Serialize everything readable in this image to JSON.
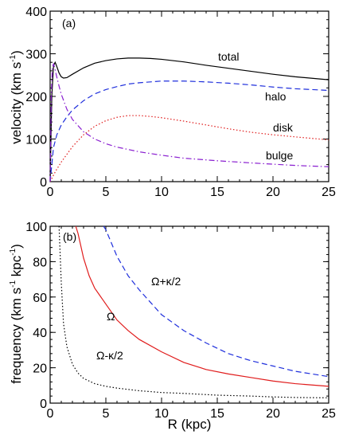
{
  "chart_data": [
    {
      "type": "line",
      "panel_label": "(a)",
      "ylabel": "velocity (km s",
      "ylabel_sup": "-1",
      "ylabel_end": ")",
      "xlim": [
        0,
        25
      ],
      "ylim": [
        0,
        400
      ],
      "xticks": [
        0,
        5,
        10,
        15,
        20,
        25
      ],
      "yticks": [
        0,
        100,
        200,
        300,
        400
      ],
      "series": [
        {
          "name": "total",
          "color": "#000000",
          "style": "solid",
          "x": [
            0,
            0.15,
            0.3,
            0.45,
            0.6,
            0.8,
            1.0,
            1.2,
            1.5,
            2,
            3,
            4,
            5,
            6,
            7,
            8,
            9,
            10,
            12,
            14,
            16,
            18,
            20,
            22,
            25
          ],
          "y": [
            0,
            200,
            272,
            280,
            270,
            255,
            246,
            243,
            244,
            252,
            267,
            278,
            284,
            288,
            290,
            290,
            289,
            287,
            281,
            273,
            266,
            259,
            252,
            246,
            239
          ]
        },
        {
          "name": "halo",
          "color": "#1f2fdc",
          "style": "dashed",
          "x": [
            0,
            0.3,
            0.6,
            1,
            1.5,
            2,
            3,
            4,
            5,
            6,
            7,
            8,
            10,
            12,
            14,
            16,
            18,
            20,
            22,
            25
          ],
          "y": [
            0,
            80,
            110,
            133,
            152,
            168,
            190,
            206,
            216,
            223,
            229,
            232,
            236,
            236,
            234,
            231,
            227,
            222,
            218,
            214
          ]
        },
        {
          "name": "disk",
          "color": "#e01c1c",
          "style": "dotted",
          "x": [
            0,
            0.5,
            1,
            2,
            3,
            4,
            5,
            6,
            7,
            8,
            9,
            10,
            12,
            14,
            16,
            18,
            20,
            22,
            25
          ],
          "y": [
            0,
            25,
            46,
            82,
            110,
            130,
            143,
            151,
            155,
            155,
            153,
            150,
            142,
            133,
            124,
            116,
            110,
            105,
            98
          ]
        },
        {
          "name": "bulge",
          "color": "#8a1fd0",
          "style": "dashdot",
          "x": [
            0,
            0.1,
            0.2,
            0.3,
            0.4,
            0.6,
            0.8,
            1,
            1.5,
            2,
            3,
            4,
            5,
            6,
            8,
            10,
            12,
            15,
            18,
            20,
            22,
            25
          ],
          "y": [
            0,
            200,
            268,
            276,
            268,
            245,
            224,
            205,
            170,
            146,
            117,
            100,
            89,
            81,
            70,
            62,
            55,
            49,
            44,
            41,
            38,
            35
          ]
        }
      ]
    },
    {
      "type": "line",
      "panel_label": "(b)",
      "xlabel": "R (kpc)",
      "ylabel": "frequency (km s",
      "ylabel_sup1": "-1",
      "ylabel_mid": " kpc",
      "ylabel_sup2": "-1",
      "ylabel_end": ")",
      "xlim": [
        0,
        25
      ],
      "ylim": [
        0,
        100
      ],
      "xticks": [
        0,
        5,
        10,
        15,
        20,
        25
      ],
      "yticks": [
        0,
        20,
        40,
        60,
        80,
        100
      ],
      "series": [
        {
          "name": "Ω",
          "color": "#e01c1c",
          "style": "solid",
          "x": [
            2.3,
            2.5,
            3,
            3.5,
            4,
            5,
            6,
            7,
            8,
            10,
            12,
            14,
            16,
            18,
            20,
            22,
            25
          ],
          "y": [
            100,
            96,
            82,
            72,
            65,
            56,
            47,
            41,
            36,
            29,
            23,
            19,
            16.5,
            14.5,
            12.5,
            11,
            9.5
          ]
        },
        {
          "name": "Ω+κ/2",
          "color": "#1f2fdc",
          "style": "dashed",
          "x": [
            4.8,
            5,
            6,
            7,
            8,
            9,
            10,
            12,
            14,
            16,
            18,
            20,
            22,
            25
          ],
          "y": [
            100,
            98,
            83,
            72,
            64,
            57,
            50,
            41,
            34,
            28,
            24,
            21,
            18,
            15
          ]
        },
        {
          "name": "Ω-κ/2",
          "color": "#000000",
          "style": "dotted",
          "x": [
            0.8,
            1,
            1.2,
            1.5,
            2,
            2.5,
            3,
            4,
            5,
            6,
            8,
            10,
            12,
            15,
            18,
            20,
            22,
            25
          ],
          "y": [
            100,
            68,
            45,
            32,
            22,
            17,
            14,
            11,
            9.5,
            8.5,
            7,
            6,
            5.5,
            4.5,
            4,
            3.5,
            3.2,
            3
          ]
        }
      ]
    }
  ]
}
